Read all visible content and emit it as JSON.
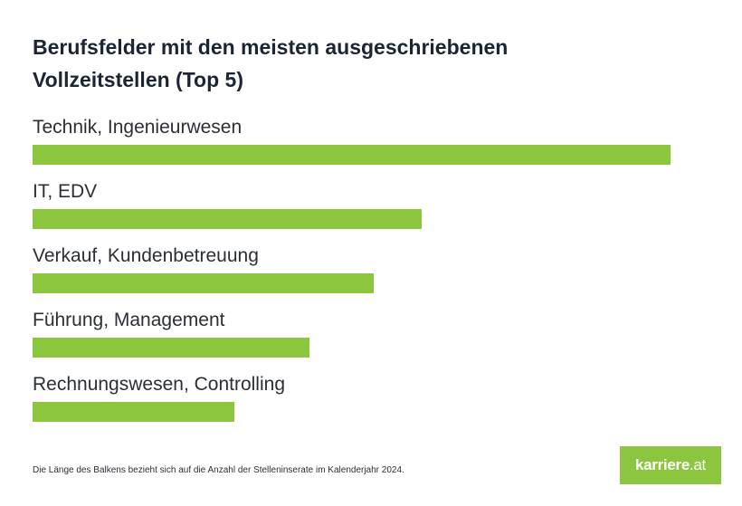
{
  "chart_data": {
    "type": "bar",
    "orientation": "horizontal",
    "title": "Berufsfelder mit den meisten ausgeschriebenen Vollzeitstellen (Top 5)",
    "categories": [
      "Technik, Ingenieurwesen",
      "IT, EDV",
      "Verkauf, Kundenbetreuung",
      "Führung, Management",
      "Rechnungswesen, Controlling"
    ],
    "values": [
      100,
      61,
      53.5,
      43.4,
      31.6
    ],
    "value_unit": "relative bar length (% of longest bar); no absolute values printed",
    "bar_color": "#8cc63f",
    "xlim": [
      0,
      100
    ],
    "axes_shown": false,
    "grid": false,
    "legend": "none",
    "footnote": "Die Länge des Balkens bezieht sich auf die Anzahl der Stelleninserate im Kalenderjahr 2024."
  },
  "logo": {
    "text_main": "karriere",
    "text_suffix": ".at",
    "background": "#8cc63f"
  }
}
